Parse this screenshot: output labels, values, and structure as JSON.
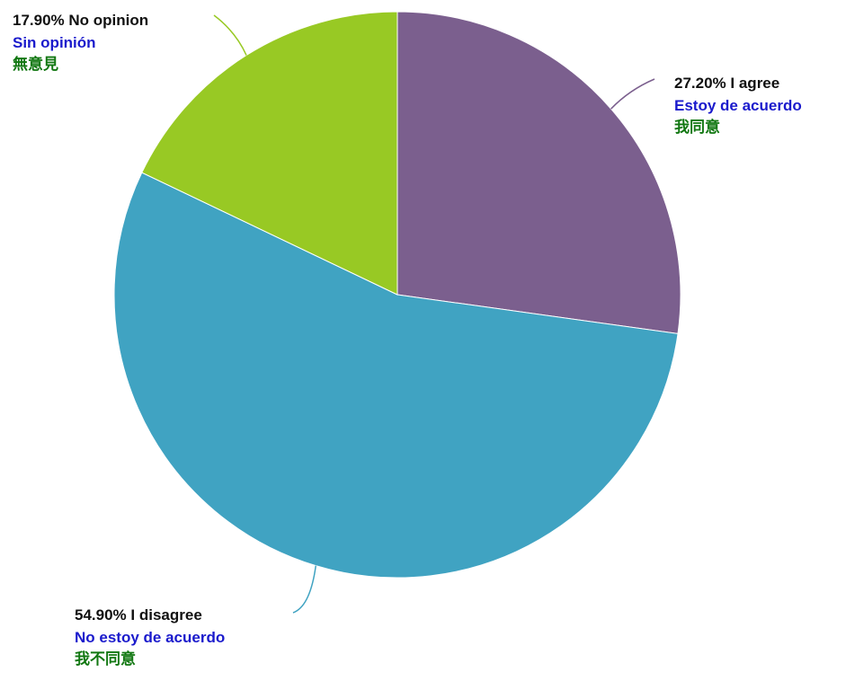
{
  "chart_data": {
    "type": "pie",
    "slices": [
      {
        "key": "agree",
        "percent_label": "27.20%",
        "value": 27.2,
        "color": "#7b5f8e",
        "label_en": "I agree",
        "label_es": "Estoy de acuerdo",
        "label_zh": "我同意"
      },
      {
        "key": "disagree",
        "percent_label": "54.90%",
        "value": 54.9,
        "color": "#40a3c2",
        "label_en": "I disagree",
        "label_es": "No estoy de acuerdo",
        "label_zh": "我不同意"
      },
      {
        "key": "noopinion",
        "percent_label": "17.90%",
        "value": 17.9,
        "color": "#98c924",
        "label_en": "No opinion",
        "label_es": "Sin opinión",
        "label_zh": "無意見"
      }
    ]
  }
}
